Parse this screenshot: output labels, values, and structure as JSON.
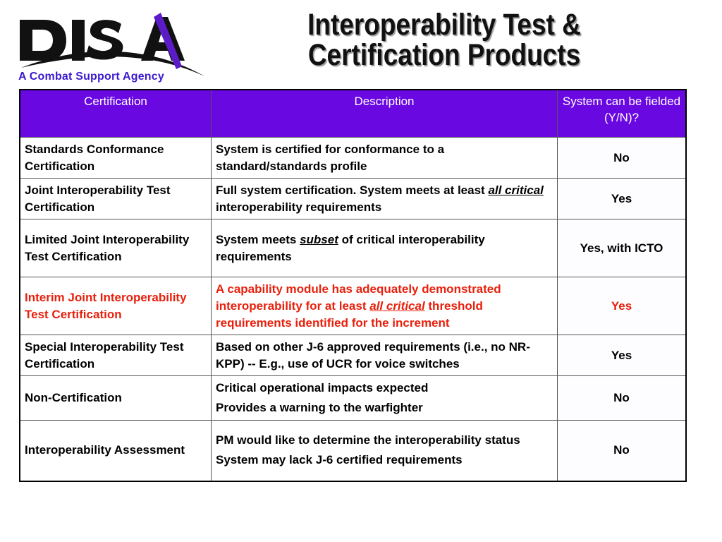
{
  "logo": {
    "text": "DISA",
    "tagline": "A Combat Support Agency"
  },
  "title": {
    "line1": "Interoperability Test &",
    "line2": "Certification Products"
  },
  "table": {
    "headers": [
      "Certification",
      "Description",
      "System can be fielded (Y/N)?"
    ],
    "rows": [
      {
        "cert": "Standards Conformance Certification",
        "desc": [
          "System is certified for conformance to a standard/standards profile"
        ],
        "fielded": "No"
      },
      {
        "cert": "Joint Interoperability Test Certification",
        "desc_pre": "Full system certification.  System meets at least ",
        "desc_em": "all critical",
        "desc_post": " interoperability requirements",
        "fielded": "Yes"
      },
      {
        "cert": "Limited Joint Interoperability Test Certification",
        "desc_pre": "System meets ",
        "desc_em": "subset",
        "desc_post": " of critical interoperability requirements",
        "fielded": "Yes, with ICTO"
      },
      {
        "cert": "Interim Joint Interoperability Test Certification",
        "desc_pre": "A capability module has adequately demonstrated interoperability for at least ",
        "desc_em": "all critical",
        "desc_post": " threshold requirements identified for the increment",
        "fielded": "Yes",
        "highlight_color": "#e8200c"
      },
      {
        "cert": "Special Interoperability Test Certification",
        "desc": [
          "Based on other J-6 approved requirements (i.e., no NR-KPP) -- E.g., use of UCR for voice switches"
        ],
        "fielded": "Yes"
      },
      {
        "cert": "Non-Certification",
        "desc": [
          "Critical operational impacts expected",
          "Provides a warning to the warfighter"
        ],
        "fielded": "No"
      },
      {
        "cert": "Interoperability Assessment",
        "desc": [
          "PM would like to determine the interoperability status",
          "System may lack J-6 certified requirements"
        ],
        "fielded": "No"
      }
    ]
  },
  "colors": {
    "header_bg": "#6a08e2",
    "tagline": "#3b1ad0",
    "highlight": "#e8200c"
  }
}
